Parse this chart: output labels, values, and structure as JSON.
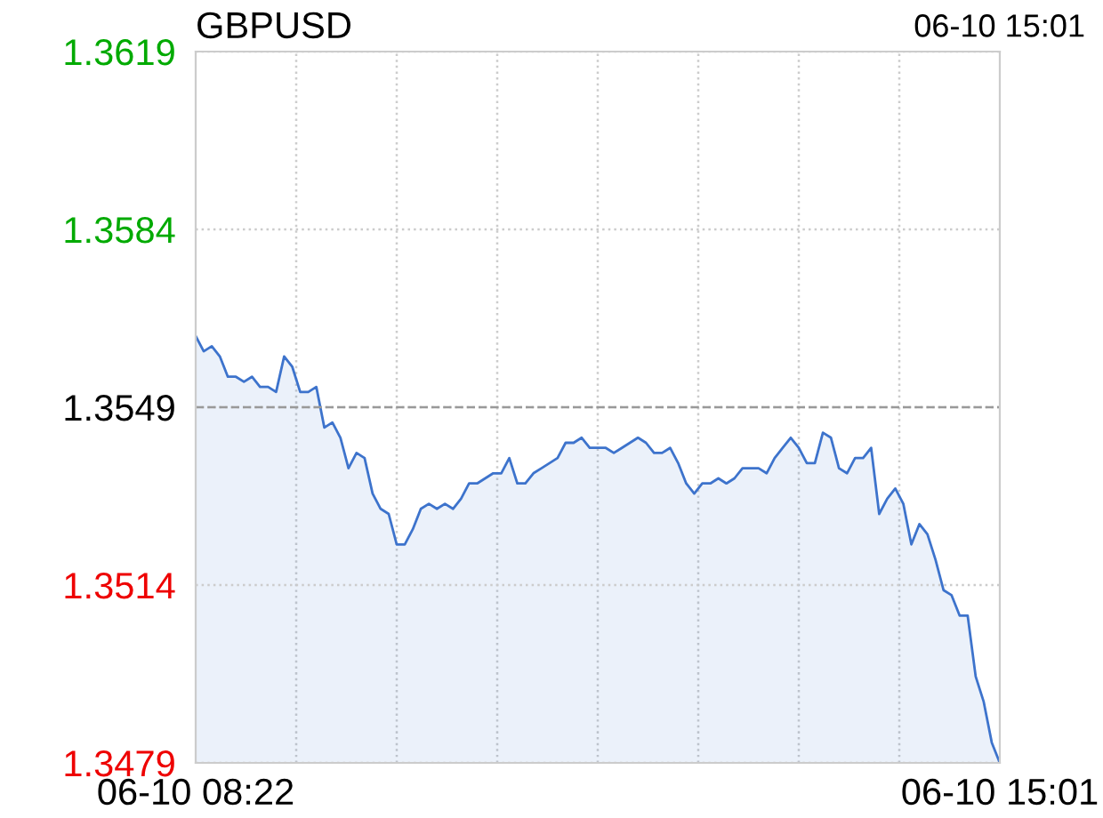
{
  "chart_data": {
    "type": "area",
    "title": "GBPUSD",
    "annotations": [
      "06-10 15:01"
    ],
    "categories": [
      "06-10 08:22",
      null,
      null,
      null,
      null,
      null,
      null,
      null,
      null,
      null,
      null,
      null,
      null,
      null,
      null,
      null,
      null,
      null,
      null,
      null,
      null,
      null,
      null,
      null,
      null,
      null,
      null,
      null,
      null,
      null,
      null,
      null,
      null,
      null,
      null,
      null,
      null,
      null,
      null,
      null,
      null,
      null,
      null,
      null,
      null,
      null,
      null,
      null,
      null,
      null,
      null,
      null,
      null,
      null,
      null,
      null,
      null,
      null,
      null,
      null,
      null,
      null,
      null,
      null,
      null,
      null,
      null,
      null,
      null,
      null,
      null,
      null,
      null,
      null,
      null,
      null,
      null,
      null,
      null,
      null,
      null,
      null,
      null,
      null,
      null,
      null,
      null,
      null,
      null,
      null,
      null,
      null,
      null,
      null,
      null,
      null,
      null,
      null,
      null,
      null,
      "06-10 15:01"
    ],
    "series": [
      {
        "color": "#3d73cc",
        "values": [
          1.3563,
          1.356,
          1.3561,
          1.3559,
          1.3555,
          1.3555,
          1.3554,
          1.3555,
          1.3553,
          1.3553,
          1.3552,
          1.3559,
          1.3557,
          1.3552,
          1.3552,
          1.3553,
          1.3545,
          1.3546,
          1.3543,
          1.3537,
          1.354,
          1.3539,
          1.3532,
          1.3529,
          1.3528,
          1.3522,
          1.3522,
          1.3525,
          1.3529,
          1.353,
          1.3529,
          1.353,
          1.3529,
          1.3531,
          1.3534,
          1.3534,
          1.3535,
          1.3536,
          1.3536,
          1.3539,
          1.3534,
          1.3534,
          1.3536,
          1.3537,
          1.3538,
          1.3539,
          1.3542,
          1.3542,
          1.3543,
          1.3541,
          1.3541,
          1.3541,
          1.354,
          1.3541,
          1.3542,
          1.3543,
          1.3542,
          1.354,
          1.354,
          1.3541,
          1.3538,
          1.3534,
          1.3532,
          1.3534,
          1.3534,
          1.3535,
          1.3534,
          1.3535,
          1.3537,
          1.3537,
          1.3537,
          1.3536,
          1.3539,
          1.3541,
          1.3543,
          1.3541,
          1.3538,
          1.3538,
          1.3544,
          1.3543,
          1.3537,
          1.3536,
          1.3539,
          1.3539,
          1.3541,
          1.3528,
          1.3531,
          1.3533,
          1.353,
          1.3522,
          1.3526,
          1.3524,
          1.3519,
          1.3513,
          1.3512,
          1.3508,
          1.3508,
          1.3496,
          1.3491,
          1.3483,
          1.3479
        ]
      }
    ],
    "ylim": [
      1.3479,
      1.3619
    ],
    "yticks": [
      1.3479,
      1.3514,
      1.3549,
      1.3584,
      1.3619
    ],
    "ref_lines": [
      {
        "axis": "y",
        "value": 1.3549,
        "color": "#999999",
        "line_style": "dashed"
      }
    ],
    "grid": true,
    "legend": false
  }
}
